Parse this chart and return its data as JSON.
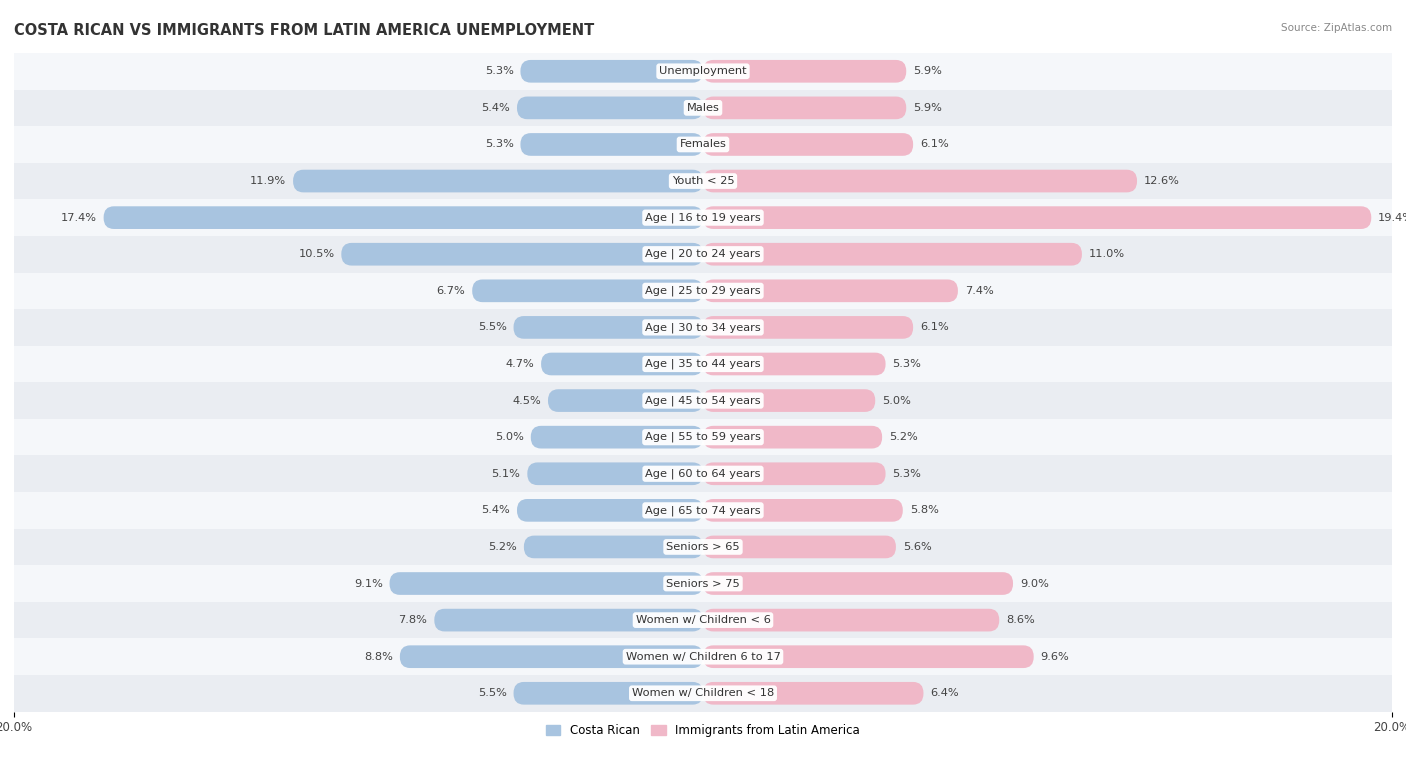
{
  "title": "COSTA RICAN VS IMMIGRANTS FROM LATIN AMERICA UNEMPLOYMENT",
  "source": "Source: ZipAtlas.com",
  "categories": [
    "Unemployment",
    "Males",
    "Females",
    "Youth < 25",
    "Age | 16 to 19 years",
    "Age | 20 to 24 years",
    "Age | 25 to 29 years",
    "Age | 30 to 34 years",
    "Age | 35 to 44 years",
    "Age | 45 to 54 years",
    "Age | 55 to 59 years",
    "Age | 60 to 64 years",
    "Age | 65 to 74 years",
    "Seniors > 65",
    "Seniors > 75",
    "Women w/ Children < 6",
    "Women w/ Children 6 to 17",
    "Women w/ Children < 18"
  ],
  "costa_rican": [
    5.3,
    5.4,
    5.3,
    11.9,
    17.4,
    10.5,
    6.7,
    5.5,
    4.7,
    4.5,
    5.0,
    5.1,
    5.4,
    5.2,
    9.1,
    7.8,
    8.8,
    5.5
  ],
  "immigrants": [
    5.9,
    5.9,
    6.1,
    12.6,
    19.4,
    11.0,
    7.4,
    6.1,
    5.3,
    5.0,
    5.2,
    5.3,
    5.8,
    5.6,
    9.0,
    8.6,
    9.6,
    6.4
  ],
  "color_blue": "#a8c4e0",
  "color_blue_dark": "#7aadd4",
  "color_pink": "#f0b8c8",
  "color_pink_dark": "#e890a8",
  "row_color_light": "#f5f7fa",
  "row_color_dark": "#eaedf2",
  "axis_max": 20.0,
  "legend_blue": "Costa Rican",
  "legend_pink": "Immigrants from Latin America",
  "bar_height": 0.62,
  "title_fontsize": 10.5,
  "label_fontsize": 8.5,
  "value_fontsize": 8.2,
  "cat_fontsize": 8.2
}
